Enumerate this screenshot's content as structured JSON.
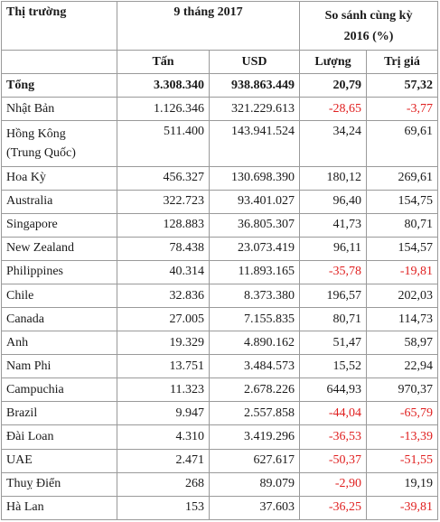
{
  "header": {
    "market": "Thị trường",
    "period": "9 tháng 2017",
    "compare_line1": "So sánh cùng kỳ",
    "compare_line2": "2016 (%)",
    "tons": "Tấn",
    "usd": "USD",
    "volume": "Lượng",
    "value": "Trị giá"
  },
  "total": {
    "name": "Tổng",
    "tons": "3.308.340",
    "usd": "938.863.449",
    "volume": "20,79",
    "value": "57,32"
  },
  "rows": [
    {
      "name": "Nhật Bản",
      "tons": "1.126.346",
      "usd": "321.229.613",
      "volume": "-28,65",
      "value": "-3,77"
    },
    {
      "name": "Hồng Kông (Trung Quốc)",
      "name1": "Hồng Kông",
      "name2": "(Trung Quốc)",
      "tons": "511.400",
      "usd": "143.941.524",
      "volume": "34,24",
      "value": "69,61"
    },
    {
      "name": "Hoa Kỳ",
      "tons": "456.327",
      "usd": "130.698.390",
      "volume": "180,12",
      "value": "269,61"
    },
    {
      "name": "Australia",
      "tons": "322.723",
      "usd": "93.401.027",
      "volume": "96,40",
      "value": "154,75"
    },
    {
      "name": "Singapore",
      "tons": "128.883",
      "usd": "36.805.307",
      "volume": "41,73",
      "value": "80,71"
    },
    {
      "name": "New Zealand",
      "tons": "78.438",
      "usd": "23.073.419",
      "volume": "96,11",
      "value": "154,57"
    },
    {
      "name": "Philippines",
      "tons": "40.314",
      "usd": "11.893.165",
      "volume": "-35,78",
      "value": "-19,81"
    },
    {
      "name": "Chile",
      "tons": "32.836",
      "usd": "8.373.380",
      "volume": "196,57",
      "value": "202,03"
    },
    {
      "name": "Canada",
      "tons": "27.005",
      "usd": "7.155.835",
      "volume": "80,71",
      "value": "114,73"
    },
    {
      "name": "Anh",
      "tons": "19.329",
      "usd": "4.890.162",
      "volume": "51,47",
      "value": "58,97"
    },
    {
      "name": "Nam Phi",
      "tons": "13.751",
      "usd": "3.484.573",
      "volume": "15,52",
      "value": "22,94"
    },
    {
      "name": "Campuchia",
      "tons": "11.323",
      "usd": "2.678.226",
      "volume": "644,93",
      "value": "970,37"
    },
    {
      "name": "Brazil",
      "tons": "9.947",
      "usd": "2.557.858",
      "volume": "-44,04",
      "value": "-65,79"
    },
    {
      "name": "Đài Loan",
      "tons": "4.310",
      "usd": "3.419.296",
      "volume": "-36,53",
      "value": "-13,39"
    },
    {
      "name": "UAE",
      "tons": "2.471",
      "usd": "627.617",
      "volume": "-50,37",
      "value": "-51,55"
    },
    {
      "name": "Thuỵ Điển",
      "tons": "268",
      "usd": "89.079",
      "volume": "-2,90",
      "value": "19,19"
    },
    {
      "name": "Hà Lan",
      "tons": "153",
      "usd": "37.603",
      "volume": "-36,25",
      "value": "-39,81"
    }
  ],
  "colors": {
    "negative": "#e02020",
    "text": "#1a1a1a",
    "border": "#9a9a9a"
  }
}
